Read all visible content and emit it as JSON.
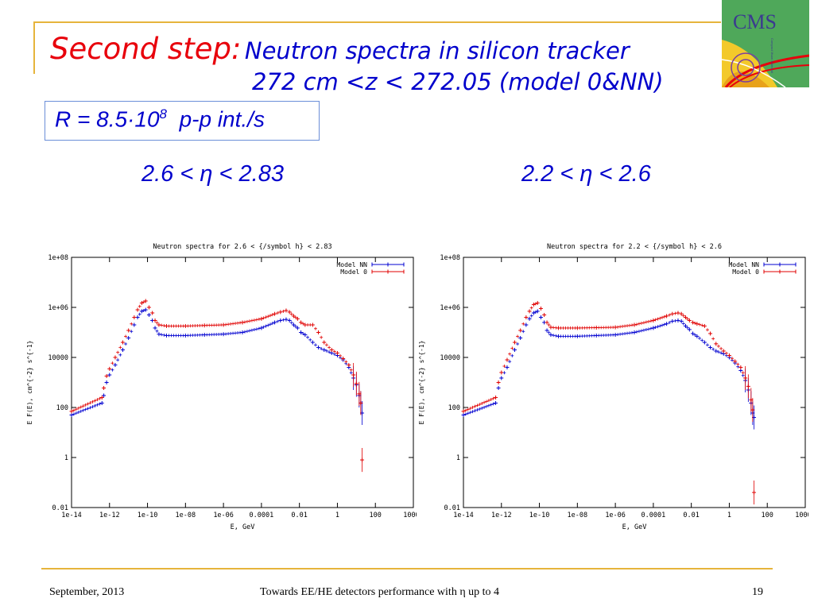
{
  "slide": {
    "title_red": "Second step:",
    "title_blue_line1": "Neutron spectra in silicon tracker",
    "title_blue_line2": "272 cm <z < 272.05 (model 0&NN)",
    "rate_prefix": "R = 8.5·10",
    "rate_exponent": "8",
    "rate_suffix": "p-p int./s",
    "eta_left": "2.6 < η < 2.83",
    "eta_right": "2.2 < η < 2.6",
    "logo_text": "CMS",
    "footer_date": "September,  2013",
    "footer_title": "Towards  EE/HE detectors performance with η up to 4",
    "footer_page": "19"
  },
  "colors": {
    "title_red": "#E8000B",
    "title_blue": "#0000CC",
    "gold_rule": "#E6B43C",
    "series_nn": "#0000D0",
    "series_model0": "#E00000"
  },
  "chart_data": [
    {
      "type": "scatter",
      "title": "Neutron spectra for 2.6 < {/symbol h} < 2.83",
      "xlabel": "E, GeV",
      "ylabel": "E F(E), cm^{-2} s^{-1}",
      "x_scale": "log",
      "y_scale": "log",
      "xlim": [
        1e-14,
        10000
      ],
      "ylim": [
        0.01,
        100000000
      ],
      "x_ticks": [
        {
          "v": 1e-14,
          "label": "1e-14"
        },
        {
          "v": 1e-12,
          "label": "1e-12"
        },
        {
          "v": 1e-10,
          "label": "1e-10"
        },
        {
          "v": 1e-08,
          "label": "1e-08"
        },
        {
          "v": 1e-06,
          "label": "1e-06"
        },
        {
          "v": 0.0001,
          "label": "0.0001"
        },
        {
          "v": 0.01,
          "label": "0.01"
        },
        {
          "v": 1,
          "label": "1"
        },
        {
          "v": 100,
          "label": "100"
        },
        {
          "v": 10000,
          "label": "10000"
        }
      ],
      "y_ticks": [
        {
          "v": 100000000,
          "label": "1e+08"
        },
        {
          "v": 1000000,
          "label": "1e+06"
        },
        {
          "v": 10000,
          "label": "10000"
        },
        {
          "v": 100,
          "label": "100"
        },
        {
          "v": 1,
          "label": "1"
        },
        {
          "v": 0.01,
          "label": "0.01"
        }
      ],
      "legend": "top-right",
      "series": [
        {
          "name": "Model NN",
          "color": "#0000D0",
          "points": [
            [
              1e-14,
              50
            ],
            [
              4e-13,
              150
            ],
            [
              5e-13,
              300
            ],
            [
              7e-13,
              1000
            ],
            [
              1e-12,
              2000
            ],
            [
              2e-12,
              5000
            ],
            [
              5e-12,
              20000
            ],
            [
              1e-11,
              60000
            ],
            [
              2e-11,
              200000
            ],
            [
              3e-11,
              400000
            ],
            [
              5e-11,
              700000
            ],
            [
              8e-11,
              800000
            ],
            [
              1.2e-10,
              500000
            ],
            [
              1.8e-10,
              300000
            ],
            [
              2.5e-10,
              150000
            ],
            [
              4e-10,
              85000
            ],
            [
              1e-09,
              75000
            ],
            [
              1e-08,
              75000
            ],
            [
              1e-07,
              80000
            ],
            [
              1e-06,
              85000
            ],
            [
              1e-05,
              100000
            ],
            [
              0.0001,
              150000
            ],
            [
              0.0005,
              250000
            ],
            [
              0.001,
              300000
            ],
            [
              0.002,
              330000
            ],
            [
              0.003,
              300000
            ],
            [
              0.005,
              200000
            ],
            [
              0.008,
              150000
            ],
            [
              0.012,
              100000
            ],
            [
              0.02,
              80000
            ],
            [
              0.05,
              40000
            ],
            [
              0.1,
              25000
            ],
            [
              0.2,
              20000
            ],
            [
              0.5,
              15000
            ],
            [
              1,
              12000
            ],
            [
              2,
              8000
            ],
            [
              4,
              4000
            ],
            [
              7,
              1500
            ],
            [
              10,
              800
            ],
            [
              14,
              300
            ],
            [
              17,
              150
            ],
            [
              20,
              60
            ]
          ]
        },
        {
          "name": "Model 0",
          "color": "#E00000",
          "points": [
            [
              1e-14,
              70
            ],
            [
              4e-13,
              250
            ],
            [
              5e-13,
              600
            ],
            [
              7e-13,
              1800
            ],
            [
              1e-12,
              3500
            ],
            [
              2e-12,
              10000
            ],
            [
              5e-12,
              40000
            ],
            [
              1e-11,
              120000
            ],
            [
              2e-11,
              400000
            ],
            [
              3e-11,
              800000
            ],
            [
              5e-11,
              1500000
            ],
            [
              8e-11,
              1800000
            ],
            [
              1.2e-10,
              1000000
            ],
            [
              1.8e-10,
              600000
            ],
            [
              2.5e-10,
              300000
            ],
            [
              4e-10,
              200000
            ],
            [
              1e-09,
              180000
            ],
            [
              1e-08,
              180000
            ],
            [
              1e-07,
              190000
            ],
            [
              1e-06,
              200000
            ],
            [
              1e-05,
              250000
            ],
            [
              0.0001,
              350000
            ],
            [
              0.0005,
              550000
            ],
            [
              0.001,
              650000
            ],
            [
              0.002,
              750000
            ],
            [
              0.003,
              650000
            ],
            [
              0.005,
              450000
            ],
            [
              0.008,
              350000
            ],
            [
              0.012,
              250000
            ],
            [
              0.02,
              200000
            ],
            [
              0.05,
              200000
            ],
            [
              0.1,
              100000
            ],
            [
              0.2,
              40000
            ],
            [
              0.5,
              20000
            ],
            [
              1,
              15000
            ],
            [
              2,
              9000
            ],
            [
              4,
              5000
            ],
            [
              7,
              2000
            ],
            [
              10,
              900
            ],
            [
              14,
              350
            ],
            [
              17,
              150
            ],
            [
              20,
              0.8
            ]
          ]
        }
      ]
    },
    {
      "type": "scatter",
      "title": "Neutron spectra for 2.2 < {/symbol h} < 2.6",
      "xlabel": "E, GeV",
      "ylabel": "E F(E), cm^{-2} s^{-1}",
      "x_scale": "log",
      "y_scale": "log",
      "xlim": [
        1e-14,
        10000
      ],
      "ylim": [
        0.01,
        100000000
      ],
      "x_ticks": [
        {
          "v": 1e-14,
          "label": "1e-14"
        },
        {
          "v": 1e-12,
          "label": "1e-12"
        },
        {
          "v": 1e-10,
          "label": "1e-10"
        },
        {
          "v": 1e-08,
          "label": "1e-08"
        },
        {
          "v": 1e-06,
          "label": "1e-06"
        },
        {
          "v": 0.0001,
          "label": "0.0001"
        },
        {
          "v": 0.01,
          "label": "0.01"
        },
        {
          "v": 1,
          "label": "1"
        },
        {
          "v": 100,
          "label": "100"
        },
        {
          "v": 10000,
          "label": "10000"
        }
      ],
      "y_ticks": [
        {
          "v": 100000000,
          "label": "1e+08"
        },
        {
          "v": 1000000,
          "label": "1e+06"
        },
        {
          "v": 10000,
          "label": "10000"
        },
        {
          "v": 100,
          "label": "100"
        },
        {
          "v": 1,
          "label": "1"
        },
        {
          "v": 0.01,
          "label": "0.01"
        }
      ],
      "legend": "top-right",
      "series": [
        {
          "name": "Model NN",
          "color": "#0000D0",
          "points": [
            [
              1e-14,
              50
            ],
            [
              5e-13,
              150
            ],
            [
              7e-13,
              600
            ],
            [
              1e-12,
              1500
            ],
            [
              2e-12,
              4000
            ],
            [
              5e-12,
              20000
            ],
            [
              1e-11,
              60000
            ],
            [
              2e-11,
              200000
            ],
            [
              3e-11,
              350000
            ],
            [
              5e-11,
              600000
            ],
            [
              8e-11,
              700000
            ],
            [
              1.2e-10,
              400000
            ],
            [
              1.8e-10,
              250000
            ],
            [
              2.5e-10,
              120000
            ],
            [
              4e-10,
              80000
            ],
            [
              1e-09,
              70000
            ],
            [
              1e-08,
              70000
            ],
            [
              1e-07,
              75000
            ],
            [
              1e-06,
              80000
            ],
            [
              1e-05,
              100000
            ],
            [
              0.0001,
              150000
            ],
            [
              0.0005,
              220000
            ],
            [
              0.001,
              280000
            ],
            [
              0.002,
              300000
            ],
            [
              0.003,
              280000
            ],
            [
              0.005,
              180000
            ],
            [
              0.008,
              130000
            ],
            [
              0.012,
              90000
            ],
            [
              0.02,
              70000
            ],
            [
              0.05,
              40000
            ],
            [
              0.1,
              25000
            ],
            [
              0.2,
              18000
            ],
            [
              0.5,
              14000
            ],
            [
              1,
              10000
            ],
            [
              2,
              6000
            ],
            [
              4,
              3000
            ],
            [
              7,
              1200
            ],
            [
              10,
              500
            ],
            [
              14,
              150
            ],
            [
              17,
              60
            ],
            [
              20,
              40
            ]
          ]
        },
        {
          "name": "Model 0",
          "color": "#E00000",
          "points": [
            [
              1e-14,
              70
            ],
            [
              5e-13,
              250
            ],
            [
              7e-13,
              1000
            ],
            [
              1e-12,
              2500
            ],
            [
              2e-12,
              8000
            ],
            [
              5e-12,
              40000
            ],
            [
              1e-11,
              120000
            ],
            [
              2e-11,
              400000
            ],
            [
              3e-11,
              700000
            ],
            [
              5e-11,
              1300000
            ],
            [
              8e-11,
              1500000
            ],
            [
              1.2e-10,
              900000
            ],
            [
              1.8e-10,
              500000
            ],
            [
              2.5e-10,
              250000
            ],
            [
              4e-10,
              160000
            ],
            [
              1e-09,
              150000
            ],
            [
              1e-08,
              150000
            ],
            [
              1e-07,
              155000
            ],
            [
              1e-06,
              160000
            ],
            [
              1e-05,
              200000
            ],
            [
              0.0001,
              300000
            ],
            [
              0.0005,
              450000
            ],
            [
              0.001,
              550000
            ],
            [
              0.002,
              600000
            ],
            [
              0.003,
              550000
            ],
            [
              0.005,
              400000
            ],
            [
              0.008,
              300000
            ],
            [
              0.012,
              250000
            ],
            [
              0.02,
              220000
            ],
            [
              0.05,
              180000
            ],
            [
              0.1,
              90000
            ],
            [
              0.2,
              35000
            ],
            [
              0.5,
              18000
            ],
            [
              1,
              12000
            ],
            [
              2,
              7000
            ],
            [
              4,
              4000
            ],
            [
              7,
              1500
            ],
            [
              10,
              700
            ],
            [
              14,
              200
            ],
            [
              17,
              80
            ],
            [
              20,
              0.04
            ]
          ]
        }
      ]
    }
  ]
}
